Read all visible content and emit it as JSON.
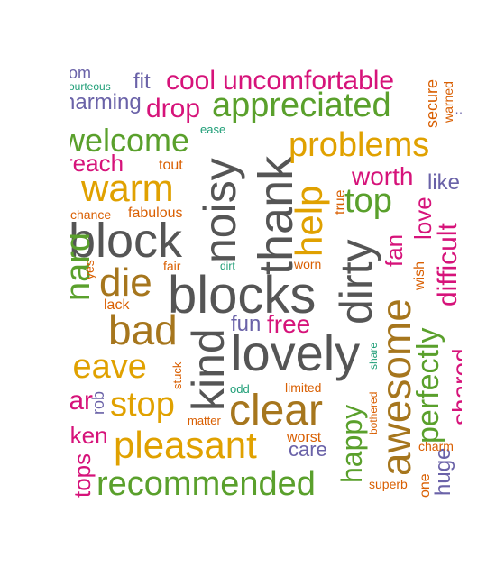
{
  "colors": {
    "green": "#5aa02c",
    "orange": "#d95f02",
    "purple": "#6a62a8",
    "magenta": "#d6137a",
    "teal": "#1f9e77",
    "gold": "#e0a100",
    "brown": "#a6761d",
    "gray": "#555555"
  },
  "words": [
    {
      "text": "thank",
      "color": "gray"
    },
    {
      "text": "noisy",
      "color": "gray"
    },
    {
      "text": "blocks",
      "color": "gray"
    },
    {
      "text": "block",
      "color": "gray"
    },
    {
      "text": "lovely",
      "color": "gray"
    },
    {
      "text": "kind",
      "color": "gray"
    },
    {
      "text": "dirty",
      "color": "gray"
    },
    {
      "text": "clear",
      "color": "brown"
    },
    {
      "text": "awesome",
      "color": "brown"
    },
    {
      "text": "bad",
      "color": "brown"
    },
    {
      "text": "die",
      "color": "brown"
    },
    {
      "text": "appreciated",
      "color": "green"
    },
    {
      "text": "recommended",
      "color": "green"
    },
    {
      "text": "welcome",
      "color": "green"
    },
    {
      "text": "top",
      "color": "green"
    },
    {
      "text": "perfectly",
      "color": "green"
    },
    {
      "text": "happy",
      "color": "green"
    },
    {
      "text": "hard",
      "color": "green"
    },
    {
      "text": "pleasant",
      "color": "gold"
    },
    {
      "text": "warm",
      "color": "gold"
    },
    {
      "text": "problems",
      "color": "gold"
    },
    {
      "text": "help",
      "color": "orange"
    },
    {
      "text": "stop",
      "color": "gold"
    },
    {
      "text": "leave",
      "color": "gold"
    },
    {
      "text": "uncomfortable",
      "color": "magenta"
    },
    {
      "text": "cool",
      "color": "magenta"
    },
    {
      "text": "drop",
      "color": "magenta"
    },
    {
      "text": "worth",
      "color": "magenta"
    },
    {
      "text": "love",
      "color": "magenta"
    },
    {
      "text": "difficult",
      "color": "magenta"
    },
    {
      "text": "free",
      "color": "magenta"
    },
    {
      "text": "reach",
      "color": "magenta"
    },
    {
      "text": "taken",
      "color": "magenta"
    },
    {
      "text": "fan",
      "color": "magenta"
    },
    {
      "text": "charming",
      "color": "purple"
    },
    {
      "text": "fit",
      "color": "purple"
    },
    {
      "text": "fun",
      "color": "purple"
    },
    {
      "text": "care",
      "color": "purple"
    },
    {
      "text": "like",
      "color": "purple"
    },
    {
      "text": "rob",
      "color": "purple"
    },
    {
      "text": "huge",
      "color": "purple"
    },
    {
      "text": "tout",
      "color": "orange"
    },
    {
      "text": "fabulous",
      "color": "orange"
    },
    {
      "text": "chance",
      "color": "orange"
    },
    {
      "text": "worn",
      "color": "orange"
    },
    {
      "text": "fair",
      "color": "orange"
    },
    {
      "text": "lack",
      "color": "orange"
    },
    {
      "text": "limited",
      "color": "orange"
    },
    {
      "text": "matter",
      "color": "orange"
    },
    {
      "text": "worst",
      "color": "orange"
    },
    {
      "text": "superb",
      "color": "orange"
    },
    {
      "text": "charm",
      "color": "orange"
    },
    {
      "text": "bothered",
      "color": "orange"
    },
    {
      "text": "secure",
      "color": "orange"
    },
    {
      "text": "warned",
      "color": "orange"
    },
    {
      "text": "true",
      "color": "orange"
    },
    {
      "text": "wish",
      "color": "orange"
    },
    {
      "text": "stuck",
      "color": "orange"
    },
    {
      "text": "yes",
      "color": "orange"
    },
    {
      "text": "ease",
      "color": "teal"
    },
    {
      "text": "dirt",
      "color": "teal"
    },
    {
      "text": "odd",
      "color": "teal"
    },
    {
      "text": "share",
      "color": "teal"
    },
    {
      "text": "courteous",
      "color": "teal"
    },
    {
      "text": "room",
      "color": "purple"
    },
    {
      "text": "clear",
      "color": "magenta"
    },
    {
      "text": "shared",
      "color": "magenta"
    },
    {
      "text": "tops",
      "color": "magenta"
    },
    {
      "text": "one",
      "color": "orange"
    },
    {
      "text": "…",
      "color": "purple"
    }
  ]
}
